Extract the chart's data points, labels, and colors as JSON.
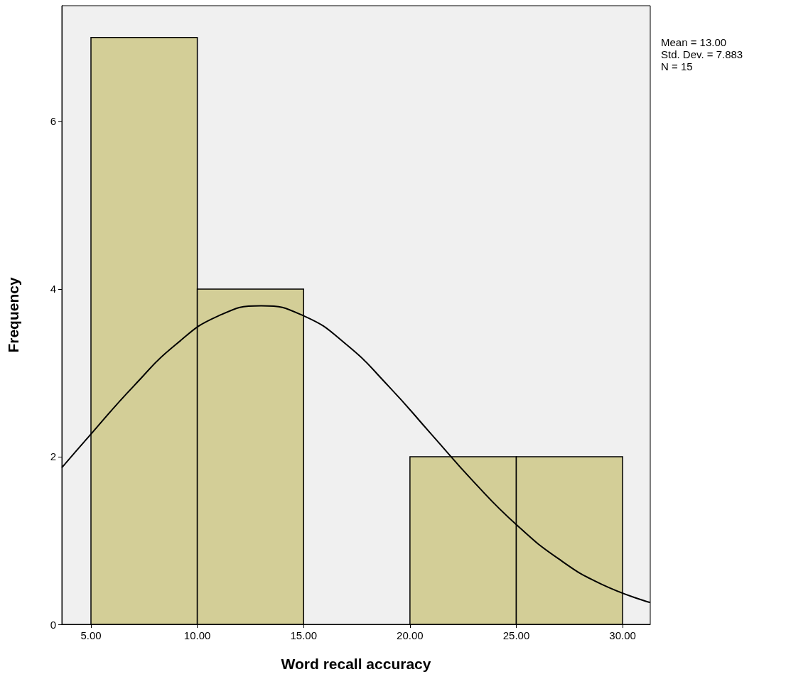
{
  "chart_data": {
    "type": "histogram",
    "xlabel": "Word recall accuracy",
    "ylabel": "Frequency",
    "bins": [
      5,
      10,
      15,
      20,
      25,
      30
    ],
    "values": [
      7,
      4,
      0,
      2,
      2
    ],
    "color": "#d3ce97",
    "series": [
      {
        "type": "line",
        "color": "#000000",
        "x": [
          3.63,
          5,
          7,
          9,
          11,
          13,
          15,
          17,
          19,
          21,
          23,
          25,
          27,
          29,
          31.3
        ],
        "values": [
          1.87,
          2.27,
          2.84,
          3.34,
          3.68,
          3.8,
          3.68,
          3.34,
          2.84,
          2.27,
          1.7,
          1.19,
          0.78,
          0.48,
          0.26
        ]
      }
    ],
    "xlim": [
      3.63,
      31.3
    ],
    "xticks": [
      {
        "value": 5,
        "label": "5.00"
      },
      {
        "value": 10,
        "label": "10.00"
      },
      {
        "value": 15,
        "label": "15.00"
      },
      {
        "value": 20,
        "label": "20.00"
      },
      {
        "value": 25,
        "label": "25.00"
      },
      {
        "value": 30,
        "label": "30.00"
      }
    ],
    "ylim": [
      0,
      7.38
    ],
    "yticks": [
      0,
      2,
      4,
      6
    ],
    "grid": false,
    "marker": "none",
    "annotations": [
      "Mean = 13.00",
      "Std. Dev. = 7.883",
      "N = 15"
    ]
  }
}
